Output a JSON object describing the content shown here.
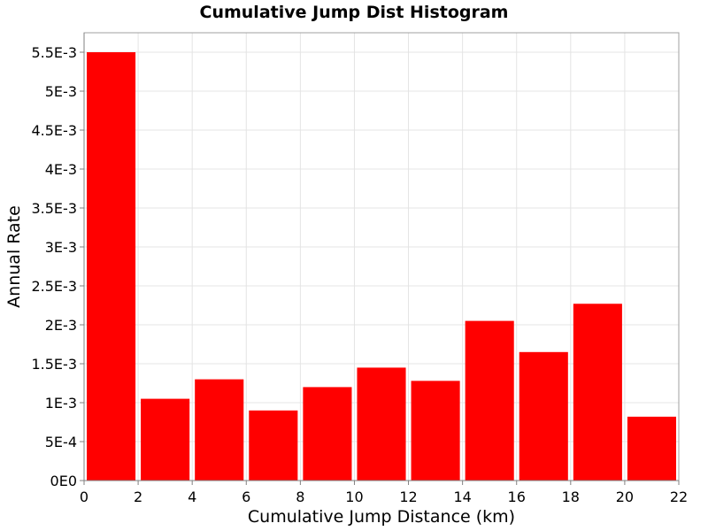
{
  "chart_data": {
    "type": "bar",
    "title": "Cumulative Jump Dist Histogram",
    "xlabel": "Cumulative Jump Distance (km)",
    "ylabel": "Annual Rate",
    "xlim": [
      0,
      22
    ],
    "ylim": [
      0,
      0.00575
    ],
    "grid": true,
    "bar_color": "#ff0000",
    "bin_width": 2,
    "x": [
      1,
      3,
      5,
      7,
      9,
      11,
      13,
      15,
      17,
      19,
      21
    ],
    "values": [
      0.0055,
      0.00105,
      0.0013,
      0.0009,
      0.0012,
      0.00145,
      0.00128,
      0.00205,
      0.00165,
      0.00227,
      0.00082
    ],
    "x_ticks": [
      0,
      2,
      4,
      6,
      8,
      10,
      12,
      14,
      16,
      18,
      20,
      22
    ],
    "x_tick_labels": [
      "0",
      "2",
      "4",
      "6",
      "8",
      "10",
      "12",
      "14",
      "16",
      "18",
      "20",
      "22"
    ],
    "y_ticks": [
      0,
      0.0005,
      0.001,
      0.0015,
      0.002,
      0.0025,
      0.003,
      0.0035,
      0.004,
      0.0045,
      0.005,
      0.0055
    ],
    "y_tick_labels": [
      "0E0",
      "5E-4",
      "1E-3",
      "1.5E-3",
      "2E-3",
      "2.5E-3",
      "3E-3",
      "3.5E-3",
      "4E-3",
      "4.5E-3",
      "5E-3",
      "5.5E-3"
    ]
  }
}
